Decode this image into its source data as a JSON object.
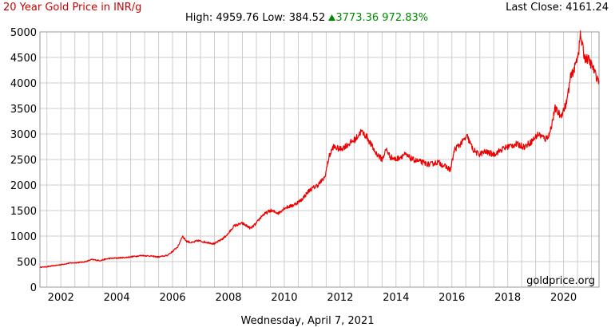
{
  "header": {
    "title": "20 Year Gold Price in INR/g",
    "last_close_label": "Last Close:",
    "last_close_value": "4161.24",
    "high_label": "High:",
    "high_value": "4959.76",
    "low_label": "Low:",
    "low_value": "384.52",
    "change_value": "3773.36",
    "change_percent": "972.83%",
    "change_icon": "triangle-up-icon",
    "change_color": "#008800"
  },
  "watermark": "goldprice.org",
  "footer": {
    "date": "Wednesday, April 7, 2021"
  },
  "chart_data": {
    "type": "line",
    "title": "20 Year Gold Price in INR/g",
    "xlabel": "",
    "ylabel": "",
    "grid": true,
    "line_color": "#ee0000",
    "ylim": [
      0,
      5000
    ],
    "xlim": [
      2001.25,
      2021.27
    ],
    "yticks": [
      "0",
      "500",
      "1000",
      "1500",
      "2000",
      "2500",
      "3000",
      "3500",
      "4000",
      "4500",
      "5000"
    ],
    "xticks": [
      "2002",
      "2004",
      "2006",
      "2008",
      "2010",
      "2012",
      "2014",
      "2016",
      "2018",
      "2020"
    ],
    "series": [
      {
        "x": [
          2001.25,
          2001.5,
          2001.75,
          2002.0,
          2002.3,
          2002.6,
          2002.9,
          2003.1,
          2003.4,
          2003.7,
          2004.0,
          2004.3,
          2004.6,
          2004.9,
          2005.2,
          2005.5,
          2005.8,
          2006.0,
          2006.2,
          2006.35,
          2006.5,
          2006.7,
          2006.9,
          2007.2,
          2007.5,
          2007.8,
          2008.0,
          2008.2,
          2008.5,
          2008.8,
          2009.0,
          2009.2,
          2009.5,
          2009.8,
          2010.0,
          2010.3,
          2010.6,
          2010.9,
          2011.2,
          2011.45,
          2011.6,
          2011.75,
          2012.0,
          2012.3,
          2012.55,
          2012.75,
          2012.95,
          2013.1,
          2013.25,
          2013.5,
          2013.65,
          2013.8,
          2014.0,
          2014.3,
          2014.6,
          2014.9,
          2015.2,
          2015.5,
          2015.8,
          2015.95,
          2016.1,
          2016.3,
          2016.55,
          2016.75,
          2016.95,
          2017.2,
          2017.5,
          2017.8,
          2018.0,
          2018.3,
          2018.6,
          2018.85,
          2019.1,
          2019.35,
          2019.5,
          2019.7,
          2019.9,
          2020.1,
          2020.25,
          2020.4,
          2020.55,
          2020.6,
          2020.75,
          2020.9,
          2021.05,
          2021.15,
          2021.27
        ],
        "values": [
          390,
          400,
          420,
          440,
          470,
          480,
          500,
          540,
          520,
          560,
          570,
          580,
          600,
          620,
          610,
          590,
          620,
          700,
          800,
          1000,
          900,
          870,
          910,
          880,
          850,
          950,
          1050,
          1200,
          1250,
          1150,
          1250,
          1400,
          1500,
          1450,
          1550,
          1600,
          1700,
          1900,
          2000,
          2150,
          2550,
          2750,
          2700,
          2800,
          2900,
          3050,
          2950,
          2800,
          2650,
          2500,
          2700,
          2550,
          2500,
          2600,
          2500,
          2450,
          2400,
          2450,
          2350,
          2300,
          2700,
          2800,
          2950,
          2700,
          2600,
          2650,
          2600,
          2700,
          2750,
          2800,
          2750,
          2850,
          3000,
          2900,
          3000,
          3500,
          3350,
          3600,
          4100,
          4300,
          4650,
          4950,
          4500,
          4450,
          4300,
          4150,
          4050
        ]
      }
    ]
  }
}
